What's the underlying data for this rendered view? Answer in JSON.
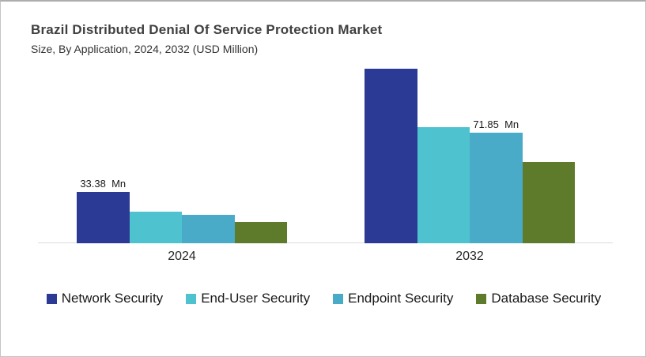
{
  "header": {
    "title": "Brazil Distributed Denial Of Service Protection Market",
    "subtitle": "Size, By Application, 2024, 2032 (USD Million)"
  },
  "chart_data": {
    "type": "bar",
    "title": "Brazil Distributed Denial Of Service Protection Market",
    "subtitle": "Size, By Application, 2024, 2032 (USD Million)",
    "unit": "USD Million",
    "categories": [
      "2024",
      "2032"
    ],
    "series": [
      {
        "name": "Network Security",
        "color": "#2b3a94",
        "values": [
          33.38,
          113.2
        ],
        "data_labels": [
          "33.38  Mn",
          ""
        ]
      },
      {
        "name": "End-User Security",
        "color": "#4ec3cf",
        "values": [
          20.5,
          75.6
        ],
        "data_labels": [
          "",
          ""
        ]
      },
      {
        "name": "Endpoint Security",
        "color": "#4aabc9",
        "values": [
          18.5,
          71.85
        ],
        "data_labels": [
          "",
          "71.85  Mn"
        ]
      },
      {
        "name": "Database Security",
        "color": "#5e7a2b",
        "values": [
          13.9,
          52.6
        ],
        "data_labels": [
          "",
          ""
        ]
      }
    ],
    "ylim": [
      0,
      120
    ],
    "grid": false,
    "y_axis_visible": false,
    "legend_position": "bottom",
    "axis_line_color": "#dcdcdc"
  }
}
